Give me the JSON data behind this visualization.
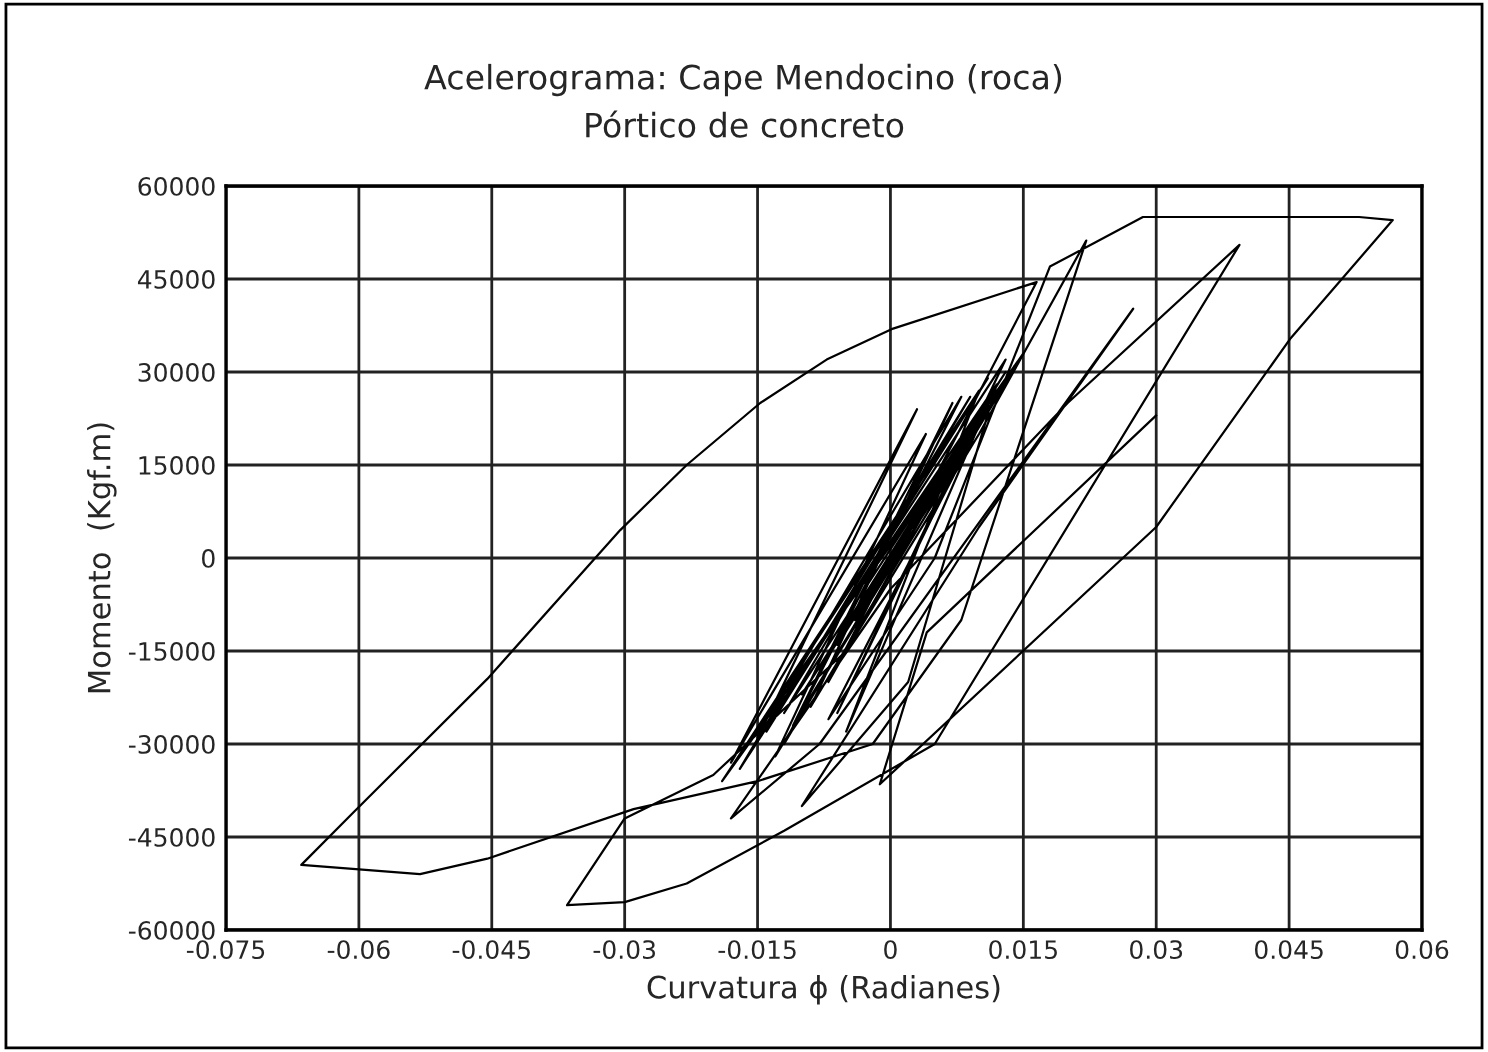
{
  "chart_data": {
    "type": "line",
    "title": "Acelerograma: Cape Mendocino (roca)",
    "subtitle": "Pórtico de concreto",
    "xlabel": "Curvatura ϕ (Radianes)",
    "ylabel": "Momento  (Kgf.m)",
    "xlim": [
      -0.075,
      0.06
    ],
    "xticks": [
      -0.075,
      -0.06,
      -0.045,
      -0.03,
      -0.015,
      0,
      0.015,
      0.03,
      0.045,
      0.06
    ],
    "ylim": [
      -60000,
      60000
    ],
    "yticks": [
      -60000,
      -45000,
      -30000,
      -15000,
      0,
      15000,
      30000,
      45000,
      60000
    ],
    "grid": true,
    "legend": false,
    "marker": "none",
    "line_style": "solid",
    "series": [
      {
        "color": "#000000",
        "x": [
          0,
          0.006,
          -0.004,
          0.008,
          -0.006,
          0.01,
          -0.008,
          0.012,
          -0.01,
          0.013,
          -0.012,
          0.009,
          -0.014,
          0.011,
          -0.016,
          0.015,
          -0.009,
          0.007,
          -0.011,
          0.014,
          -0.013,
          0.004,
          -0.018,
          0.003,
          -0.015,
          0.012,
          -0.007,
          0.0165,
          0.0003,
          -0.0072,
          -0.0147,
          -0.023,
          -0.0305,
          -0.0455,
          -0.0606,
          -0.0665,
          -0.0531,
          -0.0455,
          -0.029,
          -0.015,
          -0.002,
          0.008,
          0.0221,
          0.01,
          -0.005,
          -0.02,
          -0.03,
          -0.0365,
          -0.03,
          -0.023,
          -0.012,
          0.005,
          0.0394,
          0.02,
          0.0,
          -0.018,
          -0.008,
          0.0274,
          0.01,
          -0.01,
          0.002,
          0.012,
          -0.006,
          0.013,
          -0.017,
          0.008,
          -0.012,
          0.012,
          -0.005,
          0.01,
          -0.019,
          0.011,
          -0.007,
          0.005,
          0.018,
          0.0285,
          0.0529,
          0.0567,
          0.0452,
          0.03,
          -0.0012,
          0.0041,
          0.03
        ],
        "values": [
          0,
          12000,
          -10000,
          18000,
          -14000,
          22000,
          -18000,
          27000,
          -22000,
          30000,
          -25000,
          26000,
          -28000,
          29000,
          -30000,
          33000,
          -24000,
          25000,
          -27000,
          31000,
          -32000,
          20000,
          -33000,
          24000,
          -29000,
          28000,
          -20000,
          44500,
          37000,
          32000,
          25000,
          15000,
          4500,
          -19500,
          -41000,
          -49500,
          -51000,
          -48500,
          -40500,
          -36000,
          -30000,
          -10000,
          51200,
          20000,
          -15000,
          -35000,
          -42000,
          -56000,
          -55500,
          -52500,
          -44000,
          -30000,
          50500,
          25000,
          -5000,
          -42000,
          -30000,
          40200,
          5000,
          -40000,
          -20000,
          28000,
          -25000,
          32000,
          -34000,
          26000,
          -30000,
          28000,
          -28000,
          27000,
          -36000,
          24000,
          -26000,
          0,
          47000,
          55000,
          55000,
          54500,
          35500,
          5000,
          -36500,
          -12000,
          23000
        ]
      }
    ]
  }
}
